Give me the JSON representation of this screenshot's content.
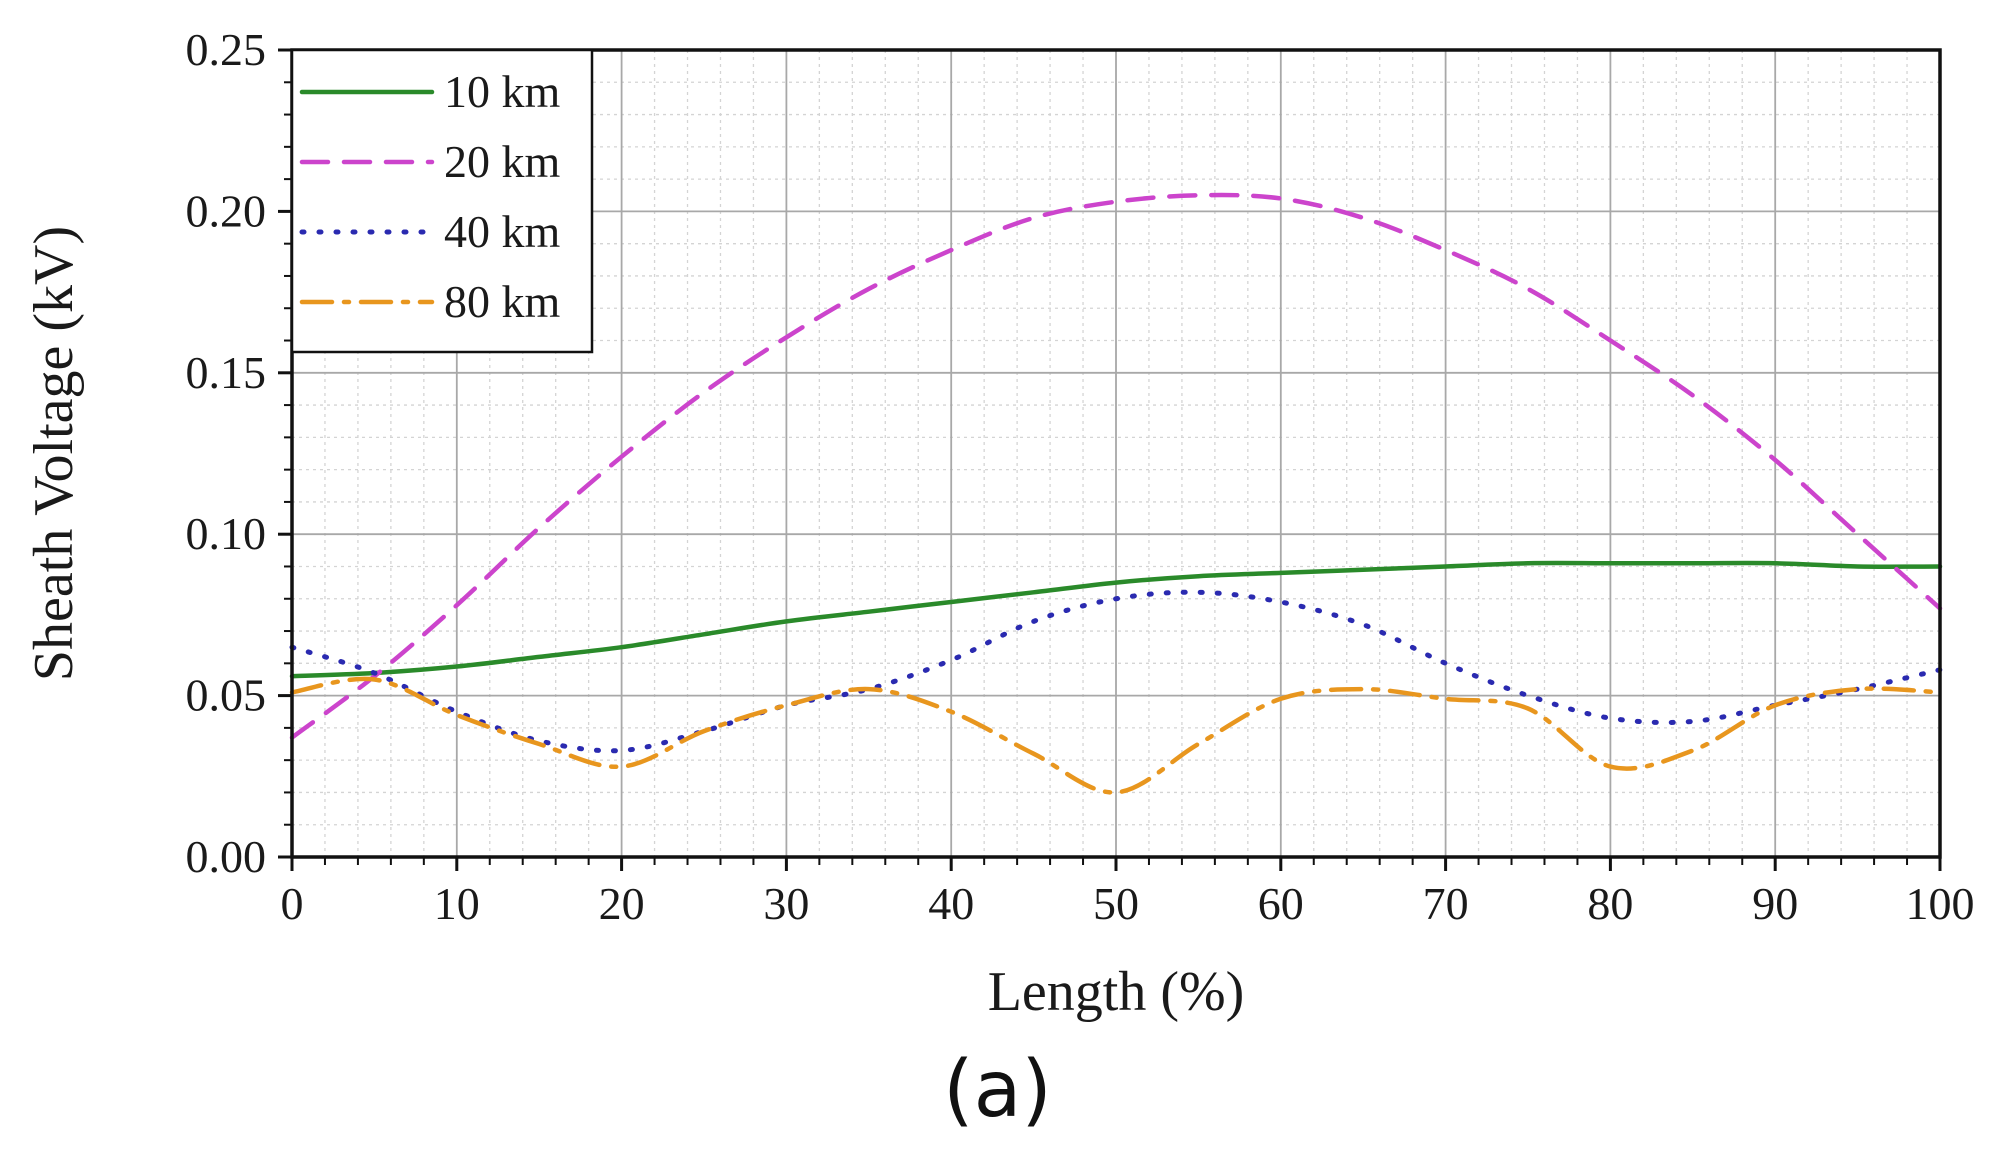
{
  "caption": "(a)",
  "chart_data": {
    "type": "line",
    "title": "",
    "xlabel": "Length (%)",
    "ylabel": "Sheath Voltage (kV)",
    "xlim": [
      0,
      100
    ],
    "ylim": [
      0,
      0.25
    ],
    "xticks": [
      0,
      10,
      20,
      30,
      40,
      50,
      60,
      70,
      80,
      90,
      100
    ],
    "yticks": [
      0,
      0.05,
      0.1,
      0.15,
      0.2,
      0.25
    ],
    "ytick_labels": [
      "0.00",
      "0.05",
      "0.10",
      "0.15",
      "0.20",
      "0.25"
    ],
    "grid": true,
    "legend_position": "top-left",
    "x": [
      0,
      5,
      10,
      15,
      20,
      25,
      30,
      35,
      40,
      45,
      50,
      55,
      60,
      65,
      70,
      75,
      80,
      85,
      90,
      95,
      100
    ],
    "series": [
      {
        "name": "10 km",
        "color": "#2a8a2a",
        "style": "solid",
        "values": [
          0.056,
          0.057,
          0.059,
          0.062,
          0.065,
          0.069,
          0.073,
          0.076,
          0.079,
          0.082,
          0.085,
          0.087,
          0.088,
          0.089,
          0.09,
          0.091,
          0.091,
          0.091,
          0.091,
          0.09,
          0.09
        ]
      },
      {
        "name": "20 km",
        "color": "#cc44cc",
        "style": "dashed",
        "values": [
          0.037,
          0.056,
          0.078,
          0.102,
          0.124,
          0.144,
          0.161,
          0.176,
          0.188,
          0.198,
          0.203,
          0.205,
          0.204,
          0.198,
          0.188,
          0.176,
          0.16,
          0.143,
          0.123,
          0.1,
          0.077
        ]
      },
      {
        "name": "40 km",
        "color": "#2a2ab0",
        "style": "dotted",
        "values": [
          0.065,
          0.057,
          0.045,
          0.036,
          0.033,
          0.039,
          0.047,
          0.052,
          0.061,
          0.073,
          0.08,
          0.082,
          0.079,
          0.072,
          0.06,
          0.05,
          0.043,
          0.042,
          0.047,
          0.052,
          0.058
        ]
      },
      {
        "name": "80 km",
        "color": "#e8961e",
        "style": "dashdot",
        "values": [
          0.051,
          0.055,
          0.044,
          0.035,
          0.028,
          0.039,
          0.047,
          0.052,
          0.045,
          0.032,
          0.02,
          0.035,
          0.049,
          0.052,
          0.049,
          0.046,
          0.028,
          0.033,
          0.047,
          0.052,
          0.051
        ]
      }
    ]
  }
}
